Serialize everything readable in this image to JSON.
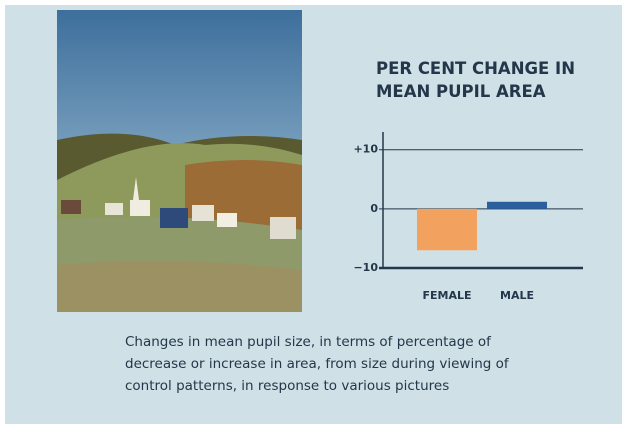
{
  "chart_data": {
    "type": "bar",
    "title": "PER CENT CHANGE IN MEAN PUPIL AREA",
    "categories": [
      "FEMALE",
      "MALE"
    ],
    "values": [
      -7,
      1.2
    ],
    "colors": [
      "#f2a25e",
      "#2c5f9e"
    ],
    "ylim": [
      -10,
      13
    ],
    "yticks": [
      {
        "value": 10,
        "label": "+10"
      },
      0,
      {
        "value": -10,
        "label": "−10"
      }
    ],
    "grid": true,
    "caption": "Changes in mean pupil size, in terms of percentage of decrease or increase in area, from size during viewing of control patterns, in response to various pictures"
  }
}
